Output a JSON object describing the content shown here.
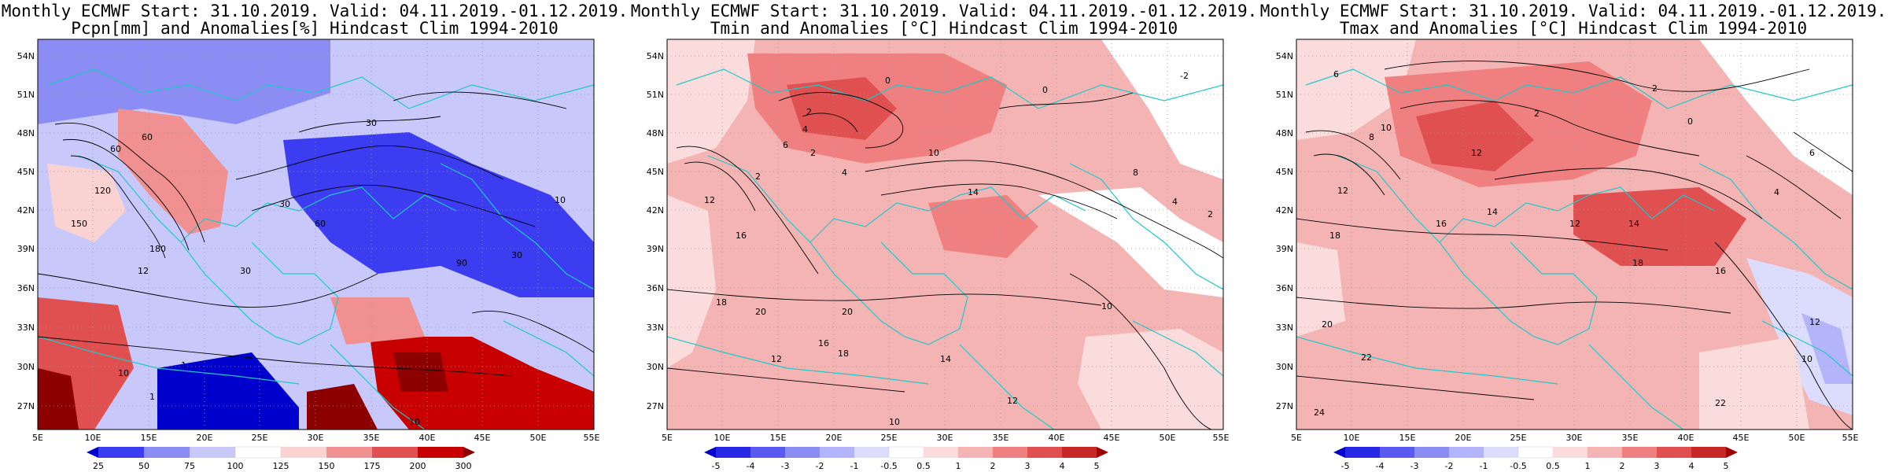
{
  "panels": [
    {
      "id": "precip",
      "title1": "Monthly ECMWF Start: 31.10.2019. Valid: 04.11.2019.-01.12.2019.",
      "title2": "Pcpn[mm] and Anomalies[%] Hindcast Clim 1994-2010",
      "lat_labels": [
        "54N",
        "51N",
        "48N",
        "45N",
        "42N",
        "39N",
        "36N",
        "33N",
        "30N",
        "27N"
      ],
      "lon_labels": [
        "5E",
        "10E",
        "15E",
        "20E",
        "25E",
        "30E",
        "35E",
        "40E",
        "45E",
        "50E",
        "55E"
      ],
      "colorbar": [
        "25",
        "50",
        "75",
        "100",
        "125",
        "150",
        "175",
        "200",
        "300"
      ],
      "palette": [
        "#0000cc",
        "#3c3cf0",
        "#8c8cf5",
        "#c8c8fa",
        "#ffffff",
        "#fad2d2",
        "#f09090",
        "#e05050",
        "#c80000",
        "#8c0000"
      ],
      "contour_labels": [
        "30",
        "60",
        "90",
        "120",
        "150",
        "180",
        "10",
        "1",
        "12",
        "30",
        "60",
        "90",
        "10",
        "30",
        "60",
        "10",
        "30",
        "1",
        "10"
      ]
    },
    {
      "id": "tmin",
      "title1": "Monthly ECMWF Start: 31.10.2019. Valid: 04.11.2019.-01.12.2019.",
      "title2": "Tmin and Anomalies [°C] Hindcast Clim 1994-2010",
      "lat_labels": [
        "54N",
        "51N",
        "48N",
        "45N",
        "42N",
        "39N",
        "36N",
        "33N",
        "30N",
        "27N"
      ],
      "lon_labels": [
        "5E",
        "10E",
        "15E",
        "20E",
        "25E",
        "30E",
        "35E",
        "40E",
        "45E",
        "50E",
        "55E"
      ],
      "colorbar": [
        "-5",
        "-4",
        "-3",
        "-2",
        "-1",
        "-0.5",
        "0.5",
        "1",
        "2",
        "3",
        "4",
        "5"
      ],
      "palette": [
        "#0000cc",
        "#2828e6",
        "#5a5af0",
        "#8c8cf5",
        "#b4b4fa",
        "#dcdcfc",
        "#ffffff",
        "#fadcdc",
        "#f5b4b4",
        "#f08080",
        "#e05050",
        "#c82828",
        "#a00000"
      ],
      "contour_labels": [
        "2",
        "0",
        "4",
        "2",
        "6",
        "4",
        "10",
        "2",
        "14",
        "12",
        "16",
        "18",
        "20",
        "20",
        "12",
        "16",
        "18",
        "10",
        "14",
        "12",
        "10",
        "2",
        "8",
        "4",
        "-2",
        "0"
      ]
    },
    {
      "id": "tmax",
      "title1": "Monthly ECMWF Start: 31.10.2019. Valid: 04.11.2019.-01.12.2019.",
      "title2": "Tmax and Anomalies [°C] Hindcast Clim 1994-2010",
      "lat_labels": [
        "54N",
        "51N",
        "48N",
        "45N",
        "42N",
        "39N",
        "36N",
        "33N",
        "30N",
        "27N"
      ],
      "lon_labels": [
        "5E",
        "10E",
        "15E",
        "20E",
        "25E",
        "30E",
        "35E",
        "40E",
        "45E",
        "50E",
        "55E"
      ],
      "colorbar": [
        "-5",
        "-4",
        "-3",
        "-2",
        "-1",
        "-0.5",
        "0.5",
        "1",
        "2",
        "3",
        "4",
        "5"
      ],
      "palette": [
        "#0000cc",
        "#2828e6",
        "#5a5af0",
        "#8c8cf5",
        "#b4b4fa",
        "#dcdcfc",
        "#ffffff",
        "#fadcdc",
        "#f5b4b4",
        "#f08080",
        "#e05050",
        "#c82828",
        "#a00000"
      ],
      "contour_labels": [
        "6",
        "2",
        "8",
        "10",
        "12",
        "12",
        "14",
        "16",
        "18",
        "12",
        "14",
        "18",
        "20",
        "22",
        "24",
        "22",
        "16",
        "12",
        "10",
        "6",
        "4",
        "2",
        "0"
      ]
    }
  ]
}
